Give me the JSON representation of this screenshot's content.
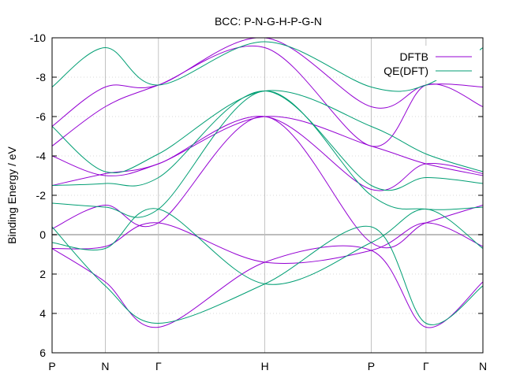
{
  "chart_data": {
    "type": "line",
    "title": "BCC: P-N-G-H-P-G-N",
    "ylabel": "Binding Energy / eV",
    "xlabel": "",
    "ylim": [
      6,
      -10
    ],
    "xlim": [
      0,
      8.1
    ],
    "k_points": [
      {
        "label": "P",
        "x": 0
      },
      {
        "label": "N",
        "x": 1
      },
      {
        "label": "Γ",
        "x": 2
      },
      {
        "label": "H",
        "x": 4
      },
      {
        "label": "P",
        "x": 6
      },
      {
        "label": "Γ",
        "x": 7.03
      },
      {
        "label": "N",
        "x": 8.1
      }
    ],
    "yticks": [
      6,
      4,
      2,
      0,
      -2,
      -4,
      -6,
      -8,
      -10
    ],
    "grid": true,
    "legend_position": "top-right",
    "series": [
      {
        "name": "DFTB",
        "color": "#9400d3",
        "bands": [
          {
            "x": [
              0,
              1,
              2,
              4,
              6,
              7.03,
              8.1
            ],
            "y": [
              0.7,
              2.4,
              4.7,
              1.4,
              0.8,
              4.7,
              2.4
            ]
          },
          {
            "x": [
              0,
              1,
              2,
              4,
              6,
              7.03,
              8.1
            ],
            "y": [
              0.7,
              0.6,
              -0.6,
              1.4,
              0.8,
              -0.6,
              0.6
            ]
          },
          {
            "x": [
              0,
              1,
              2,
              4,
              6,
              7.03,
              8.1
            ],
            "y": [
              -0.3,
              -1.5,
              -0.6,
              -6.0,
              0.4,
              -0.6,
              -1.5
            ]
          },
          {
            "x": [
              0,
              1,
              2,
              4,
              6,
              7.03,
              8.1
            ],
            "y": [
              -2.5,
              -3.1,
              -3.6,
              -6.0,
              -2.3,
              -3.6,
              -3.1
            ]
          },
          {
            "x": [
              0,
              1,
              2,
              4,
              6,
              7.03,
              8.1
            ],
            "y": [
              -4.0,
              -3.0,
              -3.6,
              -6.0,
              -4.5,
              -3.6,
              -3.0
            ]
          },
          {
            "x": [
              0,
              1,
              2,
              4,
              6,
              7.03,
              8.1
            ],
            "y": [
              -4.5,
              -6.5,
              -7.6,
              -9.5,
              -4.5,
              -7.6,
              -6.5
            ]
          },
          {
            "x": [
              0,
              1,
              2,
              4,
              6,
              7.03,
              8.1
            ],
            "y": [
              -5.5,
              -7.5,
              -7.6,
              -10.0,
              -6.5,
              -7.6,
              -7.5
            ]
          }
        ]
      },
      {
        "name": "QE(DFT)",
        "color": "#009e73",
        "bands": [
          {
            "x": [
              0,
              1,
              2,
              4,
              6,
              7.03,
              8.1
            ],
            "y": [
              -0.4,
              2.6,
              4.5,
              2.5,
              -0.4,
              4.5,
              2.6
            ]
          },
          {
            "x": [
              0,
              1,
              2,
              4,
              6,
              7.03,
              8.1
            ],
            "y": [
              0.4,
              0.7,
              -1.3,
              2.5,
              0.4,
              -1.3,
              0.7
            ]
          },
          {
            "x": [
              0,
              1,
              2,
              4,
              6,
              7.03,
              8.1
            ],
            "y": [
              -1.6,
              -1.4,
              -1.3,
              -7.3,
              -2.0,
              -1.3,
              -1.4
            ]
          },
          {
            "x": [
              0,
              1,
              2,
              4,
              6,
              7.03,
              8.1
            ],
            "y": [
              -2.5,
              -2.6,
              -2.9,
              -7.3,
              -2.5,
              -2.9,
              -2.6
            ]
          },
          {
            "x": [
              0,
              1,
              2,
              4,
              6,
              7.03,
              8.1
            ],
            "y": [
              -5.5,
              -3.2,
              -4.1,
              -7.3,
              -5.5,
              -4.1,
              -3.2
            ]
          },
          {
            "x": [
              0,
              1,
              2,
              4,
              6,
              7.03,
              8.1
            ],
            "y": [
              -7.5,
              -9.5,
              -7.6,
              -9.8,
              -7.5,
              -7.6,
              -9.5
            ]
          }
        ]
      }
    ]
  }
}
